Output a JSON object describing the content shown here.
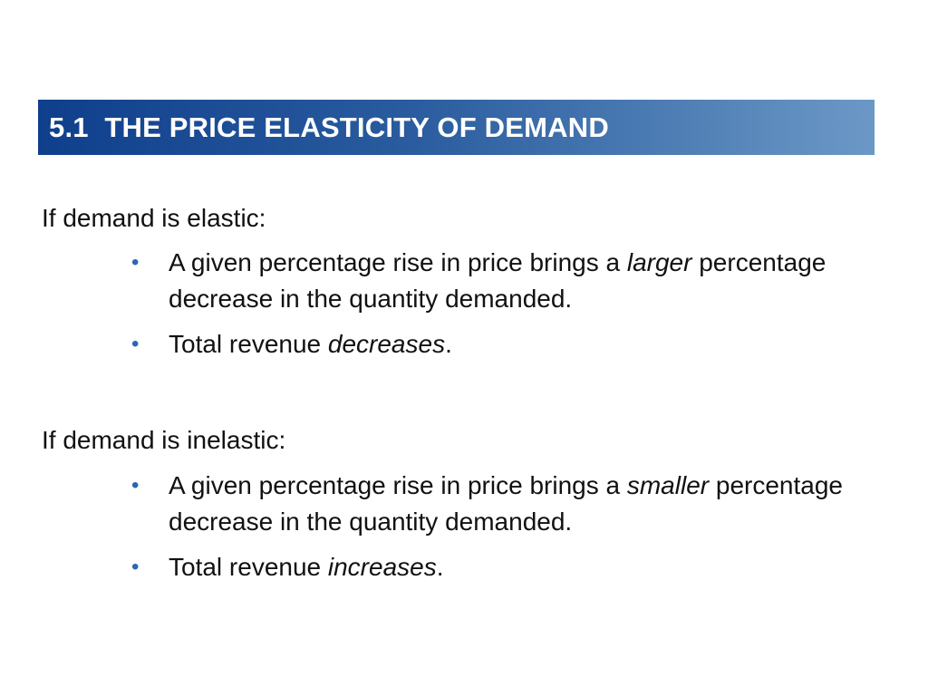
{
  "title": {
    "number": "5.1",
    "text": "THE PRICE ELASTICITY OF DEMAND"
  },
  "colors": {
    "title_bar_start": "#0f3f8c",
    "title_bar_end": "#6b98c6",
    "bullet": "#2a66b8"
  },
  "sections": [
    {
      "heading": "If demand is elastic:",
      "bullets": [
        {
          "before": "A given percentage rise in price brings a ",
          "emphasis": "larger",
          "after": " percentage decrease in the quantity demanded."
        },
        {
          "before": "Total revenue ",
          "emphasis": "decreases",
          "after": "."
        }
      ]
    },
    {
      "heading": "If demand is inelastic:",
      "bullets": [
        {
          "before": "A given percentage rise in price brings a ",
          "emphasis": "smaller",
          "after": " percentage decrease in the quantity demanded."
        },
        {
          "before": "Total revenue ",
          "emphasis": "increases",
          "after": "."
        }
      ]
    }
  ]
}
